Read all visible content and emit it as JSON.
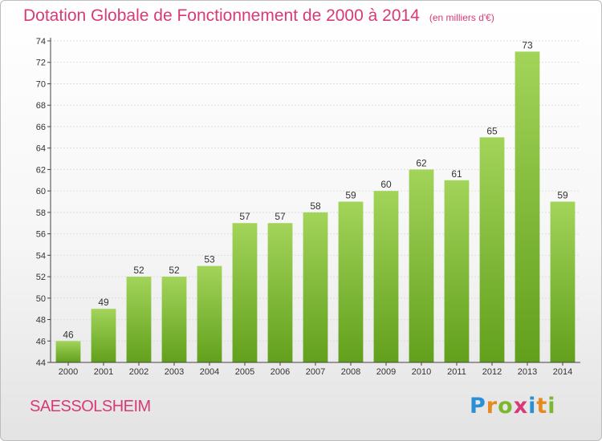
{
  "title": "Dotation Globale de Fonctionnement de 2000 à 2014",
  "subtitle": "(en milliers d'€)",
  "commune": "SAESSOLSHEIM",
  "logo_text": "Proxiti",
  "colors": {
    "title": "#d83a78",
    "bar_light": "#a2d45a",
    "bar_dark": "#62a01c",
    "axis": "#444444",
    "grid": "#dddddd"
  },
  "chart_data": {
    "type": "bar",
    "categories": [
      "2000",
      "2001",
      "2002",
      "2003",
      "2004",
      "2005",
      "2006",
      "2007",
      "2008",
      "2009",
      "2010",
      "2011",
      "2012",
      "2013",
      "2014"
    ],
    "values": [
      46,
      49,
      52,
      52,
      53,
      57,
      57,
      58,
      59,
      60,
      62,
      61,
      65,
      73,
      59
    ],
    "ylim": [
      44,
      74
    ],
    "yticks": [
      44,
      46,
      48,
      50,
      52,
      54,
      56,
      58,
      60,
      62,
      64,
      66,
      68,
      70,
      72,
      74
    ],
    "grid": true,
    "data_labels": true,
    "title": "Dotation Globale de Fonctionnement de 2000 à 2014",
    "subtitle": "(en milliers d'€)"
  }
}
